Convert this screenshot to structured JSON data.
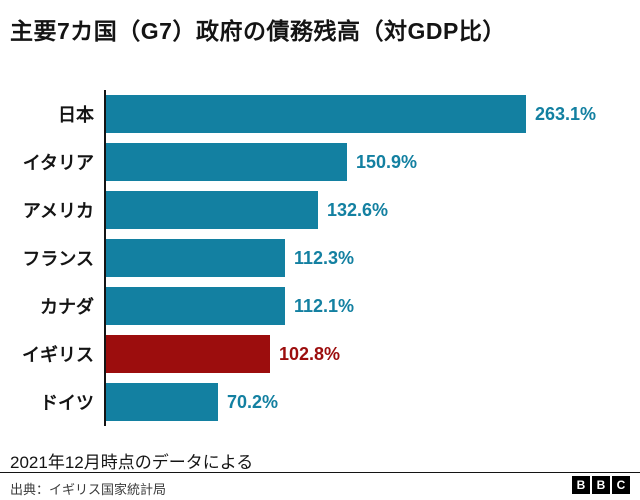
{
  "title": "主要7カ国（G7）政府の債務残高（対GDP比）",
  "footnote": "2021年12月時点のデータによる",
  "source": "出典：イギリス国家統計局",
  "logo_letters": [
    "B",
    "B",
    "C"
  ],
  "colors": {
    "bar": "#1380A1",
    "bar_highlight": "#9C0D0D",
    "value_text": "#1380A1",
    "value_text_highlight": "#9C0D0D",
    "axis": "#141414"
  },
  "chart_data": {
    "type": "bar",
    "orientation": "horizontal",
    "title": "主要7カ国（G7）政府の債務残高（対GDP比）",
    "categories": [
      "日本",
      "イタリア",
      "アメリカ",
      "フランス",
      "カナダ",
      "イギリス",
      "ドイツ"
    ],
    "values": [
      263.1,
      150.9,
      132.6,
      112.3,
      112.1,
      102.8,
      70.2
    ],
    "value_labels": [
      "263.1%",
      "150.9%",
      "132.6%",
      "112.3%",
      "112.1%",
      "102.8%",
      "70.2%"
    ],
    "highlight_index": 5,
    "highlight_category": "イギリス",
    "xlabel": "",
    "ylabel": "",
    "xlim": [
      0,
      290
    ],
    "grid": false,
    "legend": false,
    "note": "2021年12月時点のデータによる",
    "source": "出典：イギリス国家統計局"
  }
}
